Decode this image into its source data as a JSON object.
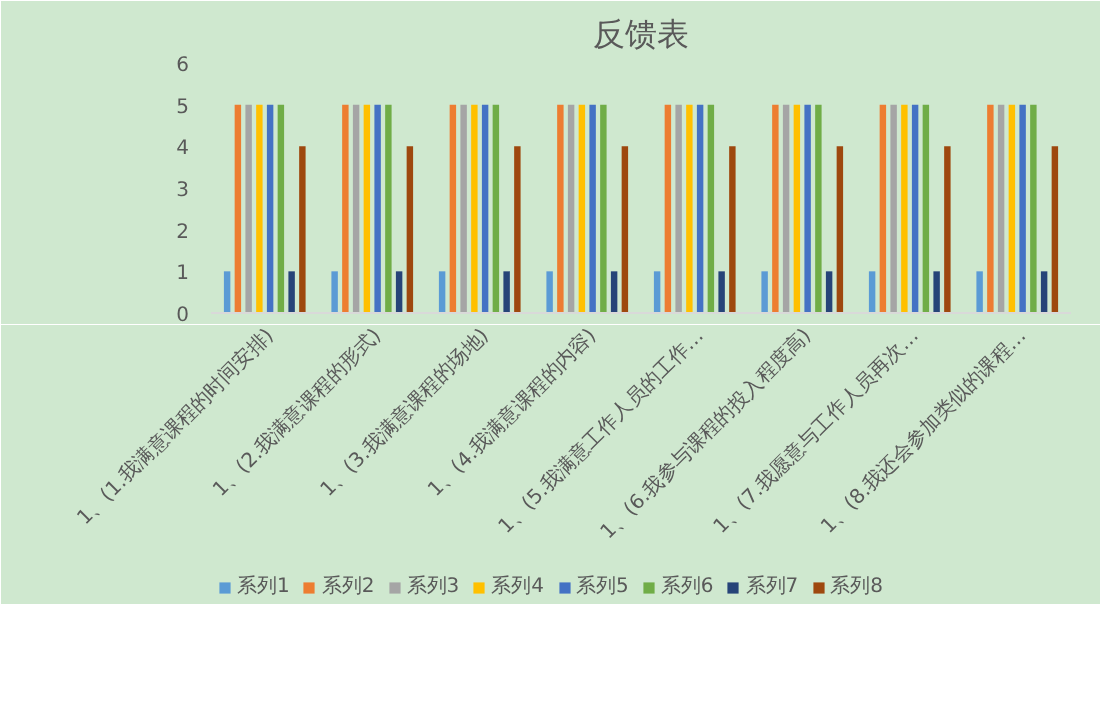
{
  "chart_data": {
    "type": "bar",
    "title": "反馈表",
    "categories": [
      "1、(1.我满意课程的时间安排)",
      "1、(2.我满意课程的形式)",
      "1、(3.我满意课程的场地)",
      "1、(4.我满意课程的内容)",
      "1、(5.我满意工作人员的工作…",
      "1、(6.我参与课程的投入程度高)",
      "1、(7.我愿意与工作人员再次…",
      "1、(8.我还会参加类似的课程…"
    ],
    "series": [
      {
        "name": "系列1",
        "color": "#5b9bd5",
        "values": [
          1,
          1,
          1,
          1,
          1,
          1,
          1,
          1
        ]
      },
      {
        "name": "系列2",
        "color": "#ed7d31",
        "values": [
          5,
          5,
          5,
          5,
          5,
          5,
          5,
          5
        ]
      },
      {
        "name": "系列3",
        "color": "#a5a5a5",
        "values": [
          5,
          5,
          5,
          5,
          5,
          5,
          5,
          5
        ]
      },
      {
        "name": "系列4",
        "color": "#ffc000",
        "values": [
          5,
          5,
          5,
          5,
          5,
          5,
          5,
          5
        ]
      },
      {
        "name": "系列5",
        "color": "#4472c4",
        "values": [
          5,
          5,
          5,
          5,
          5,
          5,
          5,
          5
        ]
      },
      {
        "name": "系列6",
        "color": "#70ad47",
        "values": [
          5,
          5,
          5,
          5,
          5,
          5,
          5,
          5
        ]
      },
      {
        "name": "系列7",
        "color": "#264478",
        "values": [
          1,
          1,
          1,
          1,
          1,
          1,
          1,
          1
        ]
      },
      {
        "name": "系列8",
        "color": "#9e480e",
        "values": [
          4,
          4,
          4,
          4,
          4,
          4,
          4,
          4
        ]
      }
    ],
    "ylim": [
      0,
      6
    ],
    "yticks": [
      0,
      1,
      2,
      3,
      4,
      5,
      6
    ],
    "legend": "bottom"
  }
}
